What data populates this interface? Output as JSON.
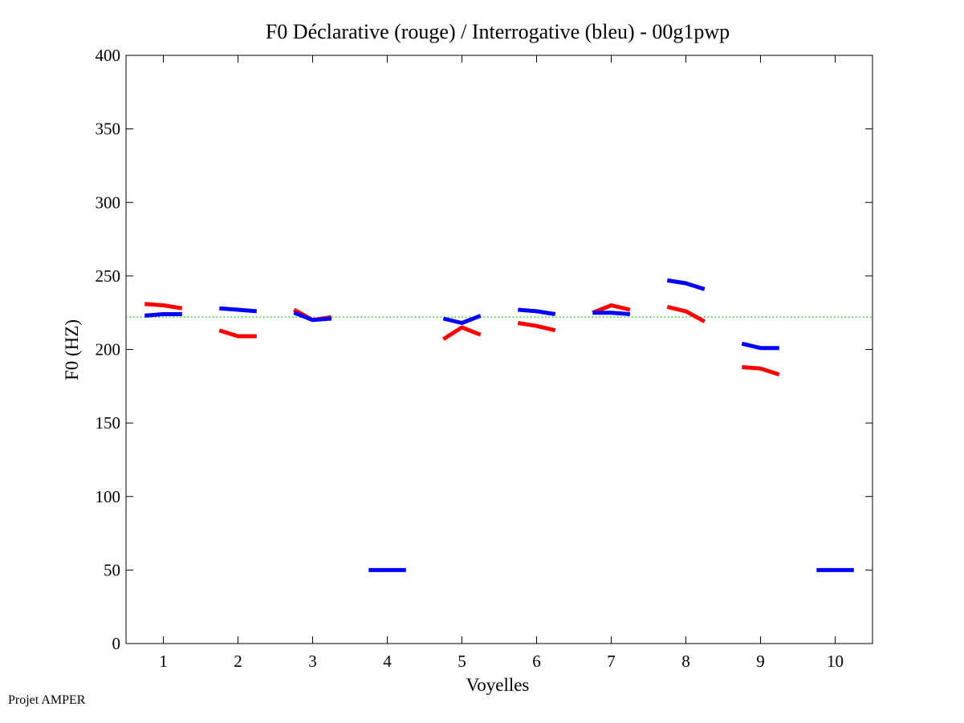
{
  "footer": "Projet AMPER",
  "chart_data": {
    "type": "line",
    "title": "F0 Déclarative (rouge) / Interrogative (bleu) - 00g1pwp",
    "xlabel": "Voyelles",
    "ylabel": "F0 (HZ)",
    "xlim": [
      0.5,
      10.5
    ],
    "ylim": [
      0,
      400
    ],
    "xticks": [
      "1",
      "2",
      "3",
      "4",
      "5",
      "6",
      "7",
      "8",
      "9",
      "10"
    ],
    "yticks": [
      "0",
      "50",
      "100",
      "150",
      "200",
      "250",
      "300",
      "350",
      "400"
    ],
    "reference_line": {
      "y": 222,
      "color": "#00cc00",
      "style": "dotted"
    },
    "series": [
      {
        "color": "#ff0000",
        "segments": [
          {
            "vowel": 1,
            "y": [
              231,
              230,
              228
            ]
          },
          {
            "vowel": 2,
            "y": [
              213,
              209,
              209
            ]
          },
          {
            "vowel": 3,
            "y": [
              227,
              220,
              222
            ]
          },
          {
            "vowel": 5,
            "y": [
              207,
              215,
              210
            ]
          },
          {
            "vowel": 6,
            "y": [
              218,
              216,
              213
            ]
          },
          {
            "vowel": 7,
            "y": [
              225,
              230,
              227
            ]
          },
          {
            "vowel": 8,
            "y": [
              229,
              226,
              219
            ]
          },
          {
            "vowel": 9,
            "y": [
              188,
              187,
              183
            ]
          }
        ]
      },
      {
        "color": "#0000ff",
        "segments": [
          {
            "vowel": 1,
            "y": [
              223,
              224,
              224
            ]
          },
          {
            "vowel": 2,
            "y": [
              228,
              227,
              226
            ]
          },
          {
            "vowel": 3,
            "y": [
              225,
              220,
              221
            ]
          },
          {
            "vowel": 4,
            "y": [
              50,
              50,
              50
            ]
          },
          {
            "vowel": 5,
            "y": [
              221,
              218,
              223
            ]
          },
          {
            "vowel": 6,
            "y": [
              227,
              226,
              224
            ]
          },
          {
            "vowel": 7,
            "y": [
              225,
              225,
              224
            ]
          },
          {
            "vowel": 8,
            "y": [
              247,
              245,
              241
            ]
          },
          {
            "vowel": 9,
            "y": [
              204,
              201,
              201
            ]
          },
          {
            "vowel": 10,
            "y": [
              50,
              50,
              50
            ]
          }
        ]
      }
    ]
  }
}
